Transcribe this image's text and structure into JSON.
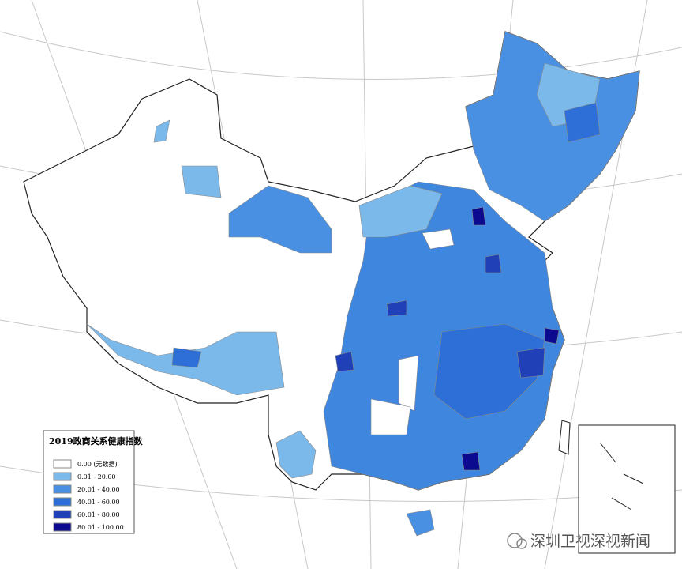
{
  "legend": {
    "title": "2019政商关系健康指数",
    "items": [
      {
        "label": "0.00 (无数据)",
        "color": "#ffffff"
      },
      {
        "label": "0.01 - 20.00",
        "color": "#7cb9eb"
      },
      {
        "label": "20.01 - 40.00",
        "color": "#4a90e2"
      },
      {
        "label": "40.01 - 60.00",
        "color": "#2d6fd6"
      },
      {
        "label": "60.01 - 80.00",
        "color": "#2040b8"
      },
      {
        "label": "80.01 - 100.00",
        "color": "#0c0a8e"
      }
    ]
  },
  "watermark": "深圳卫视深视新闻"
}
